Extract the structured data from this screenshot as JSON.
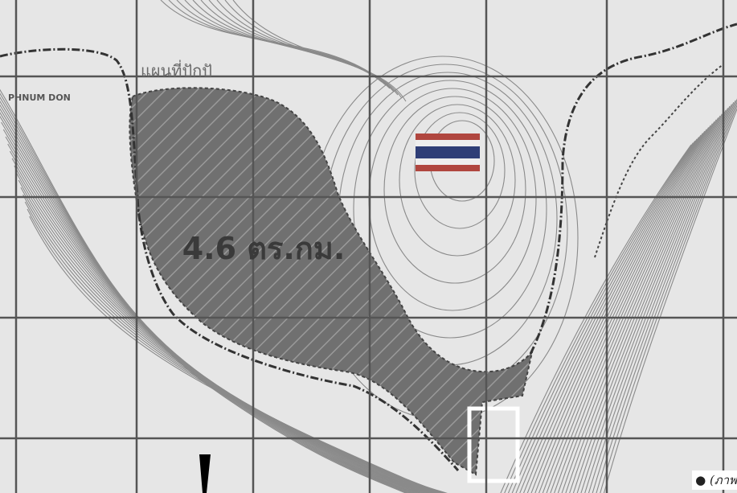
{
  "map": {
    "area_label": "4.6 ตร.กม.",
    "labels": [
      "แผนที่ปักปั",
      "PHNUM DON"
    ]
  },
  "caption": "(ภาพ"
}
